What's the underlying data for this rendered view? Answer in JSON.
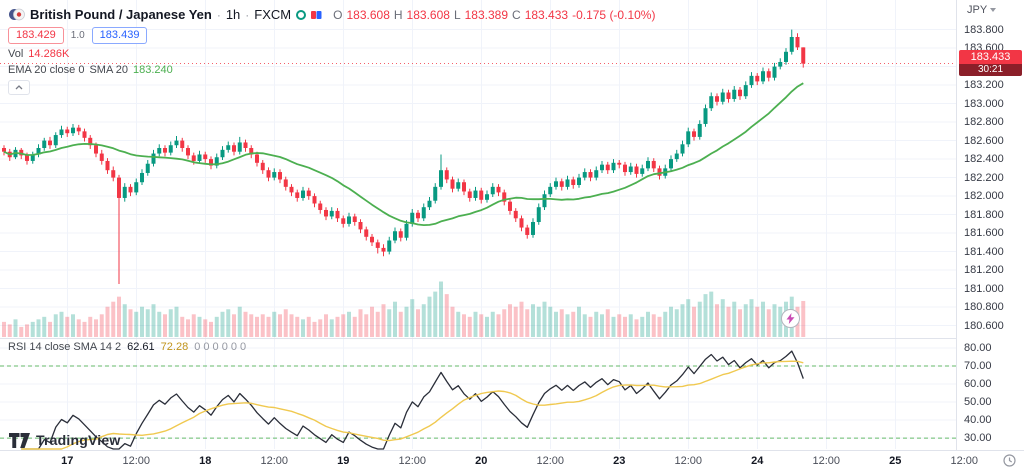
{
  "header": {
    "symbol_title": "British Pound / Japanese Yen",
    "separator": "·",
    "interval": "1h",
    "exchange": "FXCM",
    "ohlc": {
      "o_label": "O",
      "o": "183.608",
      "h_label": "H",
      "h": "183.608",
      "l_label": "L",
      "l": "183.389",
      "c_label": "C",
      "c": "183.433",
      "change": "-0.175 (-0.10%)"
    },
    "sell_price": "183.429",
    "spread": "1.0",
    "buy_price": "183.439",
    "volume_label": "Vol",
    "volume_value": "14.286K",
    "ema_legend": "EMA 20 close 0",
    "sma_legend": "SMA 20",
    "sma_value": "183.240"
  },
  "rsi_legend": {
    "title": "RSI 14 close SMA 14 2",
    "rsi_value": "62.61",
    "ma_value": "72.28",
    "extras": "0 0 0 0 0 0"
  },
  "axis": {
    "currency": "JPY",
    "price_badge": "183.433",
    "countdown": "30:21"
  },
  "footer": {
    "logo_text": "TradingView"
  },
  "colors": {
    "up": "#089981",
    "down": "#F23645",
    "vol_up": "rgba(8,153,129,0.30)",
    "vol_down": "rgba(242,54,69,0.30)",
    "ma": "#4CAF50",
    "rsi": "#2A2E39",
    "rsi_ma": "#F0C950",
    "rsi_level": "#4CAF50",
    "grid": "#F0F3FA",
    "border": "#E0E3EB",
    "sell": "#F23645",
    "buy": "#2962FF",
    "badge_bg": "#F23645",
    "countdown_bg": "#8B1F29"
  },
  "chart_data": {
    "type": "candlestick+volume+rsi",
    "title": "British Pound / Japanese Yen, 1h, FXCM",
    "last_price": 183.433,
    "price_ticks": [
      "183.800",
      "183.600",
      "183.400",
      "183.200",
      "183.000",
      "182.800",
      "182.600",
      "182.400",
      "182.200",
      "182.000",
      "181.800",
      "181.600",
      "181.400",
      "181.200",
      "181.000",
      "180.800",
      "180.600"
    ],
    "rsi_ticks": [
      "80.00",
      "70.00",
      "60.00",
      "50.00",
      "40.00",
      "30.00"
    ],
    "price_axis_range": [
      180.466,
      184.12
    ],
    "rsi_axis_range": [
      24,
      85
    ],
    "rsi_levels": [
      70,
      30
    ],
    "time_ticks": [
      {
        "label": "17",
        "bar": 11,
        "major": true
      },
      {
        "label": "12:00",
        "bar": 23,
        "major": false
      },
      {
        "label": "18",
        "bar": 35,
        "major": true
      },
      {
        "label": "12:00",
        "bar": 47,
        "major": false
      },
      {
        "label": "19",
        "bar": 59,
        "major": true
      },
      {
        "label": "12:00",
        "bar": 71,
        "major": false
      },
      {
        "label": "20",
        "bar": 83,
        "major": true
      },
      {
        "label": "12:00",
        "bar": 95,
        "major": false
      },
      {
        "label": "23",
        "bar": 107,
        "major": true
      },
      {
        "label": "12:00",
        "bar": 119,
        "major": false
      },
      {
        "label": "24",
        "bar": 131,
        "major": true
      },
      {
        "label": "12:00",
        "bar": 143,
        "major": false
      },
      {
        "label": "25",
        "bar": 155,
        "major": true
      },
      {
        "label": "12:00",
        "bar": 167,
        "major": false
      }
    ],
    "candles": [
      [
        182.52,
        182.55,
        182.44,
        182.48
      ],
      [
        182.48,
        182.51,
        182.38,
        182.42
      ],
      [
        182.42,
        182.53,
        182.4,
        182.5
      ],
      [
        182.5,
        182.52,
        182.4,
        182.44
      ],
      [
        182.44,
        182.47,
        182.34,
        182.38
      ],
      [
        182.38,
        182.48,
        182.35,
        182.45
      ],
      [
        182.45,
        182.56,
        182.42,
        182.52
      ],
      [
        182.52,
        182.63,
        182.49,
        182.6
      ],
      [
        182.6,
        182.64,
        182.51,
        182.55
      ],
      [
        182.55,
        182.69,
        182.52,
        182.66
      ],
      [
        182.66,
        182.76,
        182.63,
        182.72
      ],
      [
        182.72,
        182.75,
        182.64,
        182.68
      ],
      [
        182.68,
        182.78,
        182.65,
        182.74
      ],
      [
        182.74,
        182.77,
        182.66,
        182.7
      ],
      [
        182.7,
        182.73,
        182.59,
        182.63
      ],
      [
        182.63,
        182.66,
        182.51,
        182.55
      ],
      [
        182.55,
        182.58,
        182.42,
        182.46
      ],
      [
        182.46,
        182.5,
        182.34,
        182.38
      ],
      [
        182.38,
        182.41,
        182.24,
        182.28
      ],
      [
        182.28,
        182.32,
        182.16,
        182.2
      ],
      [
        182.2,
        182.23,
        181.05,
        181.98
      ],
      [
        181.98,
        182.14,
        181.94,
        182.1
      ],
      [
        182.1,
        182.13,
        182.0,
        182.04
      ],
      [
        182.04,
        182.19,
        182.01,
        182.15
      ],
      [
        182.15,
        182.29,
        182.12,
        182.25
      ],
      [
        182.25,
        182.39,
        182.22,
        182.35
      ],
      [
        182.35,
        182.5,
        182.32,
        182.46
      ],
      [
        182.46,
        182.56,
        182.43,
        182.52
      ],
      [
        182.52,
        182.55,
        182.43,
        182.47
      ],
      [
        182.47,
        182.59,
        182.44,
        182.55
      ],
      [
        182.55,
        182.65,
        182.52,
        182.6
      ],
      [
        182.6,
        182.63,
        182.48,
        182.52
      ],
      [
        182.52,
        182.55,
        182.4,
        182.44
      ],
      [
        182.44,
        182.47,
        182.34,
        182.38
      ],
      [
        182.38,
        182.49,
        182.35,
        182.45
      ],
      [
        182.45,
        182.48,
        182.36,
        182.4
      ],
      [
        182.4,
        182.43,
        182.29,
        182.33
      ],
      [
        182.33,
        182.46,
        182.3,
        182.42
      ],
      [
        182.42,
        182.54,
        182.39,
        182.5
      ],
      [
        182.5,
        182.59,
        182.47,
        182.55
      ],
      [
        182.55,
        182.58,
        182.44,
        182.48
      ],
      [
        182.48,
        182.64,
        182.45,
        182.58
      ],
      [
        182.58,
        182.61,
        182.48,
        182.52
      ],
      [
        182.52,
        182.55,
        182.41,
        182.45
      ],
      [
        182.45,
        182.48,
        182.32,
        182.36
      ],
      [
        182.36,
        182.39,
        182.24,
        182.28
      ],
      [
        182.28,
        182.31,
        182.16,
        182.2
      ],
      [
        182.2,
        182.3,
        182.17,
        182.26
      ],
      [
        182.26,
        182.29,
        182.14,
        182.18
      ],
      [
        182.18,
        182.21,
        182.06,
        182.1
      ],
      [
        182.1,
        182.13,
        182.0,
        182.04
      ],
      [
        182.04,
        182.07,
        181.94,
        181.98
      ],
      [
        181.98,
        182.1,
        181.95,
        182.06
      ],
      [
        182.06,
        182.09,
        181.96,
        182.0
      ],
      [
        182.0,
        182.03,
        181.88,
        181.92
      ],
      [
        181.92,
        181.95,
        181.81,
        181.85
      ],
      [
        181.85,
        181.88,
        181.74,
        181.78
      ],
      [
        181.78,
        181.88,
        181.75,
        181.84
      ],
      [
        181.84,
        181.87,
        181.72,
        181.76
      ],
      [
        181.76,
        181.79,
        181.66,
        181.7
      ],
      [
        181.7,
        181.82,
        181.67,
        181.78
      ],
      [
        181.78,
        181.81,
        181.68,
        181.72
      ],
      [
        181.72,
        181.75,
        181.6,
        181.64
      ],
      [
        181.64,
        181.67,
        181.52,
        181.56
      ],
      [
        181.56,
        181.59,
        181.46,
        181.5
      ],
      [
        181.5,
        181.53,
        181.38,
        181.44
      ],
      [
        181.44,
        181.48,
        181.35,
        181.4
      ],
      [
        181.4,
        181.56,
        181.37,
        181.52
      ],
      [
        181.52,
        181.66,
        181.49,
        181.62
      ],
      [
        181.62,
        181.65,
        181.51,
        181.55
      ],
      [
        181.55,
        181.74,
        181.52,
        181.7
      ],
      [
        181.7,
        181.86,
        181.67,
        181.82
      ],
      [
        181.82,
        181.85,
        181.72,
        181.76
      ],
      [
        181.76,
        181.92,
        181.73,
        181.88
      ],
      [
        181.88,
        181.99,
        181.85,
        181.95
      ],
      [
        181.95,
        182.14,
        181.92,
        182.1
      ],
      [
        182.1,
        182.45,
        182.07,
        182.28
      ],
      [
        182.28,
        182.31,
        182.14,
        182.18
      ],
      [
        182.18,
        182.21,
        182.04,
        182.08
      ],
      [
        182.08,
        182.19,
        182.05,
        182.15
      ],
      [
        182.15,
        182.18,
        182.01,
        182.05
      ],
      [
        182.05,
        182.08,
        181.94,
        181.98
      ],
      [
        181.98,
        182.1,
        181.95,
        182.06
      ],
      [
        182.06,
        182.09,
        181.92,
        181.96
      ],
      [
        181.96,
        182.06,
        181.93,
        182.02
      ],
      [
        182.02,
        182.14,
        181.99,
        182.1
      ],
      [
        182.1,
        182.13,
        182.0,
        182.04
      ],
      [
        182.04,
        182.07,
        181.9,
        181.94
      ],
      [
        181.94,
        181.97,
        181.8,
        181.84
      ],
      [
        181.84,
        181.87,
        181.72,
        181.76
      ],
      [
        181.76,
        181.79,
        181.62,
        181.66
      ],
      [
        181.66,
        181.69,
        181.54,
        181.58
      ],
      [
        181.58,
        181.76,
        181.55,
        181.72
      ],
      [
        181.72,
        181.92,
        181.69,
        181.88
      ],
      [
        181.88,
        182.06,
        181.85,
        182.02
      ],
      [
        182.02,
        182.14,
        181.99,
        182.1
      ],
      [
        182.1,
        182.2,
        182.07,
        182.16
      ],
      [
        182.16,
        182.19,
        182.06,
        182.1
      ],
      [
        182.1,
        182.22,
        182.07,
        182.18
      ],
      [
        182.18,
        182.21,
        182.08,
        182.12
      ],
      [
        182.12,
        182.24,
        182.09,
        182.2
      ],
      [
        182.2,
        182.3,
        182.17,
        182.26
      ],
      [
        182.26,
        182.29,
        182.16,
        182.2
      ],
      [
        182.2,
        182.32,
        182.17,
        182.28
      ],
      [
        182.28,
        182.38,
        182.25,
        182.34
      ],
      [
        182.34,
        182.37,
        182.24,
        182.28
      ],
      [
        182.28,
        182.4,
        182.25,
        182.36
      ],
      [
        182.36,
        182.39,
        182.3,
        182.34
      ],
      [
        182.34,
        182.37,
        182.22,
        182.26
      ],
      [
        182.26,
        182.36,
        182.23,
        182.32
      ],
      [
        182.32,
        182.35,
        182.2,
        182.24
      ],
      [
        182.24,
        182.34,
        182.21,
        182.3
      ],
      [
        182.3,
        182.42,
        182.27,
        182.38
      ],
      [
        182.38,
        182.41,
        182.26,
        182.3
      ],
      [
        182.3,
        182.33,
        182.18,
        182.22
      ],
      [
        182.22,
        182.34,
        182.19,
        182.3
      ],
      [
        182.3,
        182.44,
        182.27,
        182.4
      ],
      [
        182.4,
        182.5,
        182.37,
        182.46
      ],
      [
        182.46,
        182.6,
        182.43,
        182.56
      ],
      [
        182.56,
        182.74,
        182.53,
        182.7
      ],
      [
        182.7,
        182.73,
        182.6,
        182.64
      ],
      [
        182.64,
        182.82,
        182.61,
        182.78
      ],
      [
        182.78,
        182.99,
        182.75,
        182.95
      ],
      [
        182.95,
        183.12,
        182.92,
        183.08
      ],
      [
        183.08,
        183.11,
        182.98,
        183.02
      ],
      [
        183.02,
        183.16,
        182.99,
        183.12
      ],
      [
        183.12,
        183.15,
        183.01,
        183.05
      ],
      [
        183.05,
        183.19,
        183.02,
        183.15
      ],
      [
        183.15,
        183.18,
        183.04,
        183.08
      ],
      [
        183.08,
        183.24,
        183.05,
        183.2
      ],
      [
        183.2,
        183.34,
        183.17,
        183.3
      ],
      [
        183.3,
        183.33,
        183.2,
        183.24
      ],
      [
        183.24,
        183.39,
        183.21,
        183.35
      ],
      [
        183.35,
        183.38,
        183.24,
        183.28
      ],
      [
        183.28,
        183.44,
        183.25,
        183.4
      ],
      [
        183.4,
        183.49,
        183.37,
        183.45
      ],
      [
        183.45,
        183.6,
        183.42,
        183.56
      ],
      [
        183.56,
        183.8,
        183.53,
        183.72
      ],
      [
        183.72,
        183.76,
        183.58,
        183.608
      ],
      [
        183.608,
        183.608,
        183.389,
        183.433
      ]
    ],
    "volumes": [
      6,
      5,
      7,
      4,
      5,
      6,
      7,
      8,
      6,
      9,
      10,
      8,
      9,
      7,
      6,
      8,
      7,
      9,
      12,
      14,
      16,
      13,
      11,
      10,
      12,
      11,
      13,
      10,
      9,
      11,
      12,
      8,
      7,
      9,
      8,
      7,
      6,
      8,
      10,
      11,
      9,
      12,
      10,
      9,
      8,
      9,
      8,
      10,
      9,
      11,
      9,
      8,
      7,
      8,
      6,
      7,
      9,
      7,
      8,
      9,
      10,
      8,
      11,
      9,
      12,
      10,
      13,
      11,
      14,
      10,
      12,
      15,
      11,
      13,
      16,
      18,
      22,
      17,
      12,
      10,
      9,
      8,
      10,
      9,
      8,
      10,
      9,
      11,
      13,
      12,
      14,
      11,
      13,
      12,
      14,
      12,
      10,
      11,
      9,
      10,
      12,
      9,
      8,
      10,
      9,
      11,
      8,
      9,
      8,
      9,
      7,
      8,
      10,
      9,
      8,
      10,
      12,
      11,
      13,
      15,
      12,
      14,
      17,
      18,
      13,
      15,
      12,
      14,
      11,
      13,
      15,
      12,
      14,
      11,
      13,
      12,
      14,
      16,
      12,
      14.286
    ]
  }
}
